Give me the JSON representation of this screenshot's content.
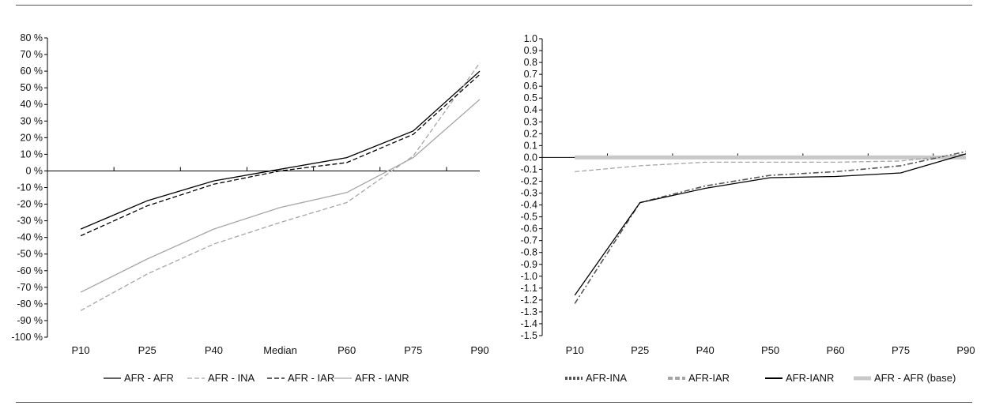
{
  "chart_data": [
    {
      "type": "line",
      "categories": [
        "P10",
        "P25",
        "P40",
        "Median",
        "P60",
        "P75",
        "P90"
      ],
      "ylim": [
        -100,
        80
      ],
      "yticks": [
        {
          "value": 80,
          "label": "80 %"
        },
        {
          "value": 70,
          "label": "70 %"
        },
        {
          "value": 60,
          "label": "60 %"
        },
        {
          "value": 50,
          "label": "50 %"
        },
        {
          "value": 40,
          "label": "40 %"
        },
        {
          "value": 30,
          "label": "30 %"
        },
        {
          "value": 20,
          "label": "20 %"
        },
        {
          "value": 10,
          "label": "10 %"
        },
        {
          "value": 0,
          "label": "0 %"
        },
        {
          "value": -10,
          "label": "-10 %"
        },
        {
          "value": -20,
          "label": "-20 %"
        },
        {
          "value": -30,
          "label": "-30 %"
        },
        {
          "value": -40,
          "label": "-40 %"
        },
        {
          "value": -50,
          "label": "-50 %"
        },
        {
          "value": -60,
          "label": "-60 %"
        },
        {
          "value": -70,
          "label": "-70 %"
        },
        {
          "value": -80,
          "label": "-80 %"
        },
        {
          "value": -90,
          "label": "-90 %"
        },
        {
          "value": -100,
          "label": "-100 %"
        }
      ],
      "legend_position": "bottom",
      "series": [
        {
          "name": "AFR - AFR",
          "values": [
            -35,
            -18,
            -6,
            1,
            8,
            24,
            60
          ],
          "color": "#000000",
          "style": "solid"
        },
        {
          "name": "AFR - INA",
          "values": [
            -84,
            -62,
            -44,
            -31,
            -19,
            9,
            65
          ],
          "color": "#a6a6a6",
          "style": "dashed"
        },
        {
          "name": "AFR - IAR",
          "values": [
            -39,
            -21,
            -8,
            0,
            5,
            22,
            58
          ],
          "color": "#000000",
          "style": "dashed"
        },
        {
          "name": "AFR - IANR",
          "values": [
            -73,
            -53,
            -35,
            -22,
            -13,
            8,
            43
          ],
          "color": "#a6a6a6",
          "style": "solid"
        }
      ]
    },
    {
      "type": "line",
      "categories": [
        "P10",
        "P25",
        "P40",
        "P50",
        "P60",
        "P75",
        "P90"
      ],
      "ylim": [
        -1.5,
        1.0
      ],
      "yticks": [
        {
          "value": 1.0,
          "label": "1.0"
        },
        {
          "value": 0.9,
          "label": "0.9"
        },
        {
          "value": 0.8,
          "label": "0.8"
        },
        {
          "value": 0.7,
          "label": "0.7"
        },
        {
          "value": 0.6,
          "label": "0.6"
        },
        {
          "value": 0.5,
          "label": "0.5"
        },
        {
          "value": 0.4,
          "label": "0.4"
        },
        {
          "value": 0.3,
          "label": "0.3"
        },
        {
          "value": 0.2,
          "label": "0.2"
        },
        {
          "value": 0.1,
          "label": "0.1"
        },
        {
          "value": 0.0,
          "label": "0.0"
        },
        {
          "value": -0.1,
          "label": "-0.1"
        },
        {
          "value": -0.2,
          "label": "-0.2"
        },
        {
          "value": -0.3,
          "label": "-0.3"
        },
        {
          "value": -0.4,
          "label": "-0.4"
        },
        {
          "value": -0.5,
          "label": "-0.5"
        },
        {
          "value": -0.6,
          "label": "-0.6"
        },
        {
          "value": -0.7,
          "label": "-0.7"
        },
        {
          "value": -0.8,
          "label": "-0.8"
        },
        {
          "value": -0.9,
          "label": "-0.9"
        },
        {
          "value": -1.0,
          "label": "-1.0"
        },
        {
          "value": -1.1,
          "label": "-1.1"
        },
        {
          "value": -1.2,
          "label": "-1.2"
        },
        {
          "value": -1.3,
          "label": "-1.3"
        },
        {
          "value": -1.4,
          "label": "-1.4"
        },
        {
          "value": -1.5,
          "label": "-1.5"
        }
      ],
      "legend_position": "bottom",
      "series": [
        {
          "name": "AFR-INA",
          "values": [
            -1.23,
            -0.38,
            -0.24,
            -0.15,
            -0.12,
            -0.07,
            0.05
          ],
          "color": "#555555",
          "style": "dashdot"
        },
        {
          "name": "AFR-IAR",
          "values": [
            -0.12,
            -0.07,
            -0.04,
            -0.04,
            -0.04,
            -0.03,
            0.03
          ],
          "color": "#a6a6a6",
          "style": "dashed"
        },
        {
          "name": "AFR-IANR",
          "values": [
            -1.16,
            -0.38,
            -0.26,
            -0.17,
            -0.16,
            -0.13,
            0.03
          ],
          "color": "#000000",
          "style": "solid"
        },
        {
          "name": "AFR - AFR (base)",
          "values": [
            0,
            0,
            0,
            0,
            0,
            0,
            0
          ],
          "color": "#c8c8c8",
          "style": "thick"
        }
      ]
    }
  ]
}
